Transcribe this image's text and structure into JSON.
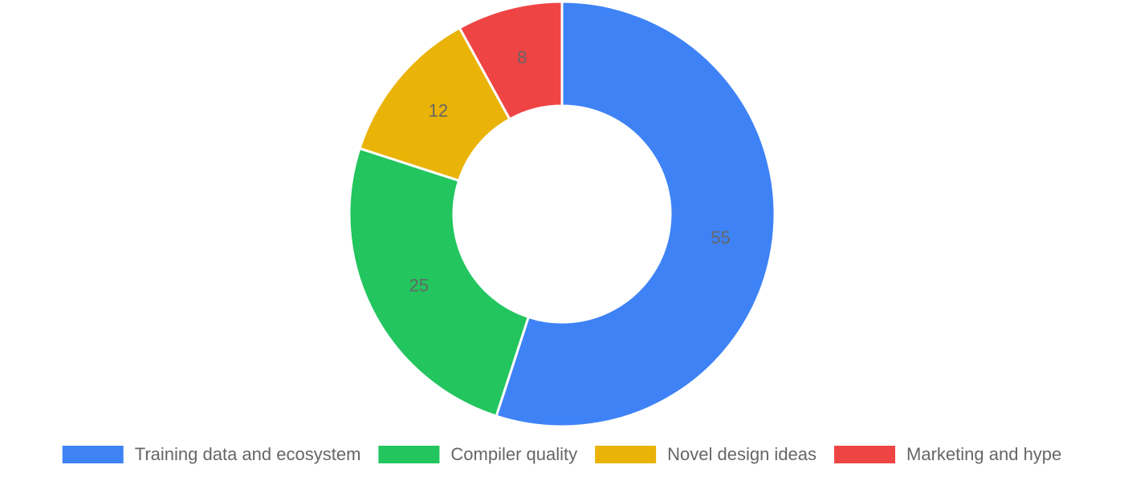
{
  "chart_data": {
    "type": "doughnut",
    "categories": [
      "Training data and ecosystem",
      "Compiler quality",
      "Novel design ideas",
      "Marketing and hype"
    ],
    "values": [
      55,
      25,
      12,
      8
    ],
    "colors": [
      "#3e82f6",
      "#22c55e",
      "#eab308",
      "#ef4444"
    ],
    "legend": "bottom"
  }
}
